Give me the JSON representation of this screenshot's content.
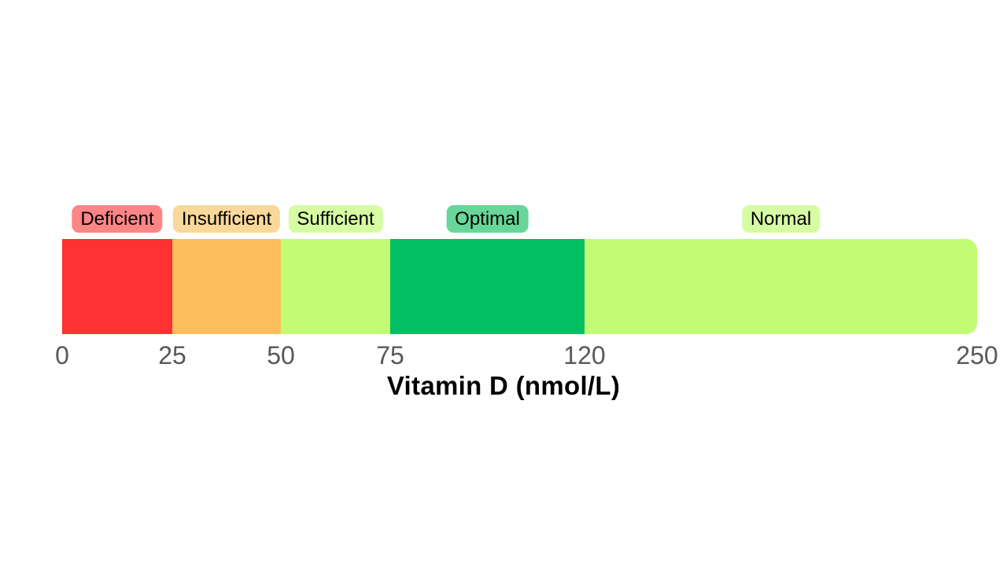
{
  "chart_data": {
    "type": "segmented-scale",
    "title": "Vitamin D (nmol/L)",
    "unit": "nmol/L",
    "axis": {
      "min": 0,
      "max": 250,
      "ticks": [
        0,
        25,
        50,
        75,
        120,
        250
      ],
      "tick_color": "#58585A",
      "note": "axis is linear from 0 to 120 and compressed between 120 and 250"
    },
    "segments": [
      {
        "label": "Deficient",
        "from": 0,
        "to": 25,
        "bar_color": "#FE3232",
        "badge_color": "#FC8585"
      },
      {
        "label": "Insufficient",
        "from": 25,
        "to": 50,
        "bar_color": "#FDBE5C",
        "badge_color": "#F9D89B"
      },
      {
        "label": "Sufficient",
        "from": 50,
        "to": 75,
        "bar_color": "#C2FC74",
        "badge_color": "#D6FCA4"
      },
      {
        "label": "Optimal",
        "from": 75,
        "to": 120,
        "bar_color": "#00C063",
        "badge_color": "#68D698"
      },
      {
        "label": "Normal",
        "from": 120,
        "to": 250,
        "bar_color": "#C2FC74",
        "badge_color": "#D6FCA4"
      }
    ],
    "legend_position": "badges centered above their bar segments",
    "grid": false,
    "background_color": "#FFFFFF"
  }
}
